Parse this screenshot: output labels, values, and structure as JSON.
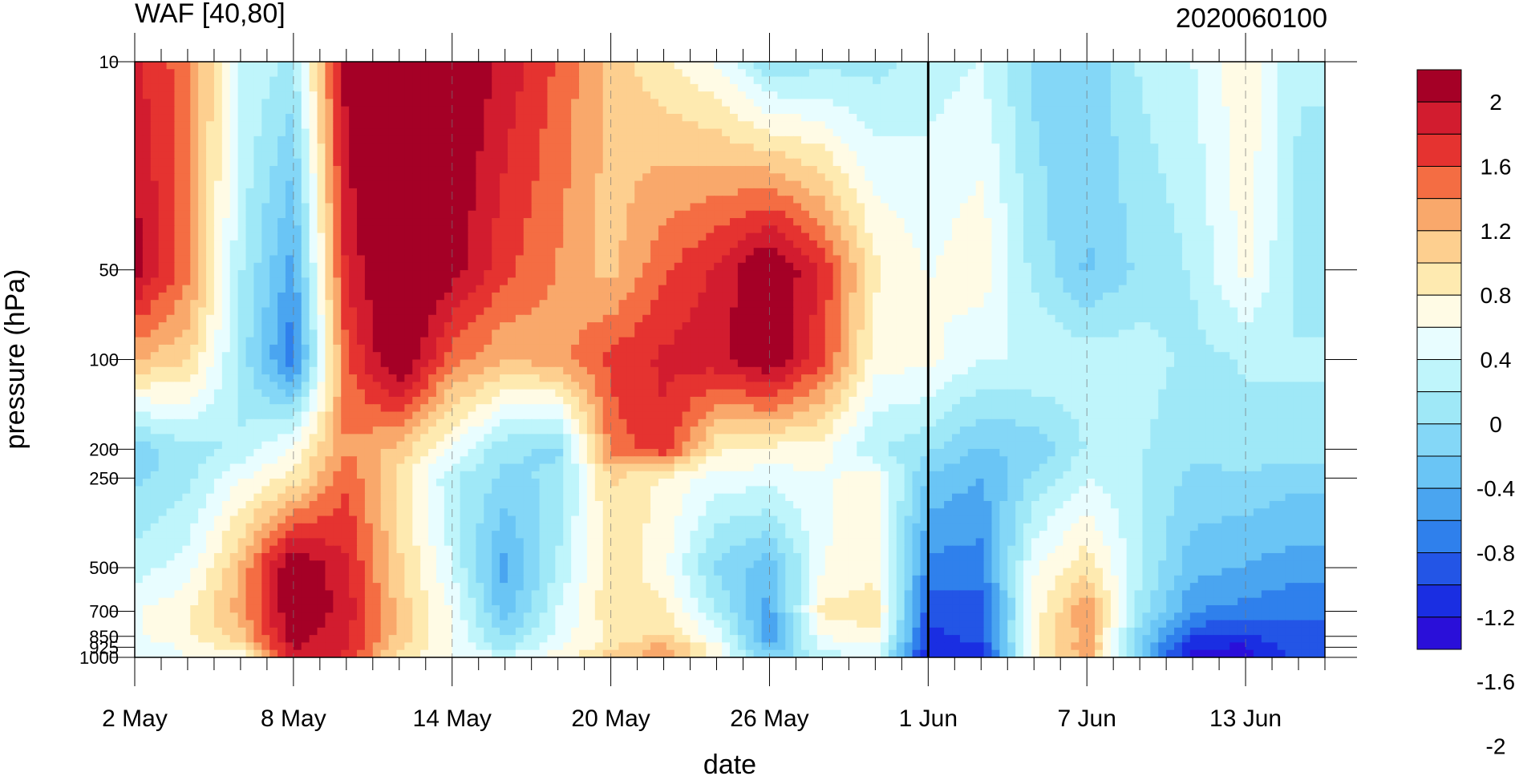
{
  "chart_data": {
    "type": "heatmap",
    "title": "WAF [40,80]",
    "date_label": "2020060100",
    "xlabel": "date",
    "ylabel": "pressure (hPa)",
    "x_tick_labels": [
      "2 May",
      "8 May",
      "14 May",
      "20 May",
      "26 May",
      "1 Jun",
      "7 Jun",
      "13 Jun"
    ],
    "x_tick_days": [
      0,
      6,
      12,
      18,
      24,
      30,
      36,
      42
    ],
    "x_range_days": [
      0,
      45
    ],
    "x_start_date": "2 May",
    "y_tick_labels": [
      "10",
      "50",
      "100",
      "200",
      "250",
      "500",
      "700",
      "850",
      "925",
      "1000"
    ],
    "y_tick_values": [
      10,
      50,
      100,
      200,
      250,
      500,
      700,
      850,
      925,
      1000
    ],
    "ylim": [
      1000,
      10
    ],
    "y_scale": "log",
    "vertical_line_day": 30,
    "colorbar": {
      "labels": [
        "2",
        "1.6",
        "1.2",
        "0.8",
        "0.4",
        "0",
        "-0.4",
        "-0.8",
        "-1.2",
        "-1.6",
        "-2"
      ],
      "colors": [
        "#a50026",
        "#d21c2f",
        "#e53330",
        "#f46d43",
        "#f9a86b",
        "#fdcf8f",
        "#feeab0",
        "#fffbe5",
        "#e8fdff",
        "#bff5fb",
        "#9fe8f7",
        "#84d7f7",
        "#6ac5f5",
        "#4aa5f0",
        "#2f80ec",
        "#2355e6",
        "#1a2ee2",
        "#2a0fd9"
      ]
    },
    "levels": [
      "1000",
      "925",
      "850",
      "700",
      "500",
      "250",
      "200",
      "100",
      "50",
      "10"
    ],
    "days": [
      "2 May",
      "4 May",
      "6 May",
      "8 May",
      "10 May",
      "12 May",
      "14 May",
      "16 May",
      "18 May",
      "20 May",
      "22 May",
      "24 May",
      "26 May",
      "28 May",
      "30 May",
      "1 Jun",
      "3 Jun",
      "5 Jun",
      "7 Jun",
      "9 Jun",
      "11 Jun",
      "13 Jun",
      "15 Jun"
    ],
    "values": [
      [
        0.1,
        0.2,
        0.3,
        1.6,
        1.5,
        0.6,
        0.2,
        0.1,
        0.3,
        0.8,
        1.0,
        0.3,
        -0.6,
        -0.2,
        0.1,
        -1.8,
        -1.7,
        0.3,
        1.0,
        -0.6,
        -1.9,
        -1.9,
        -1.5
      ],
      [
        0.0,
        0.3,
        0.6,
        1.8,
        1.6,
        0.7,
        0.2,
        -0.3,
        0.2,
        0.6,
        1.0,
        0.3,
        -0.9,
        0.1,
        0.2,
        -1.7,
        -1.6,
        0.4,
        1.1,
        -0.7,
        -1.8,
        -1.8,
        -1.4
      ],
      [
        0.2,
        0.4,
        0.8,
        1.9,
        1.6,
        0.8,
        0.2,
        -0.5,
        0.1,
        0.5,
        0.7,
        0.1,
        -1.0,
        0.2,
        0.4,
        -1.6,
        -1.5,
        0.4,
        1.0,
        -0.6,
        -1.5,
        -1.6,
        -1.4
      ],
      [
        0.2,
        0.4,
        1.0,
        2.0,
        1.7,
        0.8,
        0.2,
        -0.8,
        0.0,
        0.6,
        0.5,
        -0.2,
        -1.0,
        0.5,
        0.6,
        -1.5,
        -1.5,
        0.3,
        1.1,
        -0.3,
        -1.1,
        -1.2,
        -1.3
      ],
      [
        -0.1,
        0.1,
        0.9,
        2.1,
        1.6,
        0.7,
        0.0,
        -1.0,
        -0.2,
        0.6,
        0.3,
        -0.5,
        -0.8,
        0.2,
        0.4,
        -1.2,
        -1.2,
        0.2,
        0.6,
        -0.2,
        -0.8,
        -0.9,
        -1.0
      ],
      [
        -0.5,
        -0.3,
        0.2,
        0.5,
        1.3,
        0.6,
        -0.2,
        -0.5,
        -0.4,
        0.7,
        0.4,
        0.1,
        0.1,
        0.2,
        0.3,
        -0.7,
        -0.9,
        -0.4,
        0.0,
        -0.2,
        -0.5,
        -0.5,
        -0.6
      ],
      [
        -0.6,
        -0.3,
        -0.2,
        0.3,
        1.1,
        0.8,
        0.2,
        -0.4,
        -0.5,
        1.2,
        1.5,
        0.5,
        0.4,
        0.3,
        -0.2,
        -0.4,
        -0.7,
        -0.6,
        -0.2,
        -0.2,
        -0.4,
        -0.3,
        -0.3
      ],
      [
        0.9,
        0.7,
        -0.3,
        -1.3,
        1.3,
        2.1,
        1.2,
        0.9,
        1.0,
        1.4,
        1.6,
        1.7,
        2.0,
        1.4,
        0.3,
        0.3,
        0.0,
        0.0,
        -0.1,
        -0.1,
        -0.3,
        -0.2,
        -0.2
      ],
      [
        1.9,
        1.2,
        -0.2,
        -1.0,
        1.6,
        2.2,
        1.9,
        1.4,
        1.1,
        0.8,
        1.3,
        1.6,
        2.1,
        1.5,
        0.5,
        0.2,
        0.4,
        -0.3,
        -0.7,
        -0.4,
        -0.2,
        0.3,
        -0.3
      ],
      [
        1.6,
        1.2,
        0.0,
        -0.3,
        1.9,
        2.2,
        2.1,
        1.7,
        1.3,
        0.8,
        0.5,
        0.2,
        -0.4,
        -0.3,
        -0.3,
        -0.1,
        0.0,
        -0.5,
        -0.6,
        -0.2,
        0.0,
        0.4,
        -0.2
      ]
    ]
  }
}
